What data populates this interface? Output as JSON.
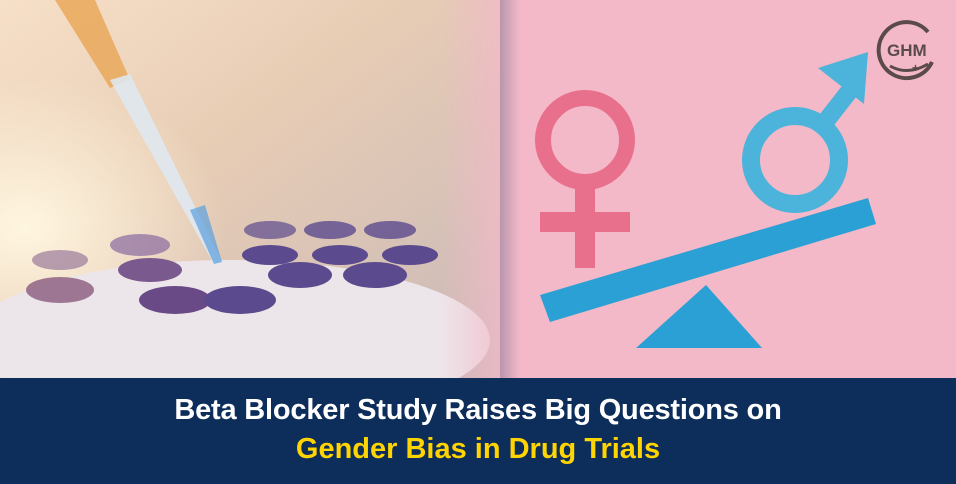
{
  "headline": {
    "line1": "Beta Blocker Study Raises Big Questions on",
    "line2": "Gender Bias in Drug Trials"
  },
  "logo": {
    "text": "GHM"
  },
  "colors": {
    "title_bar": "#0d2d5a",
    "headline_white": "#ffffff",
    "headline_yellow": "#ffd400",
    "pink_background": "#f3b9c8",
    "female_symbol": "#e8708c",
    "male_symbol": "#4cb3da",
    "seesaw": "#2aa0d4"
  }
}
